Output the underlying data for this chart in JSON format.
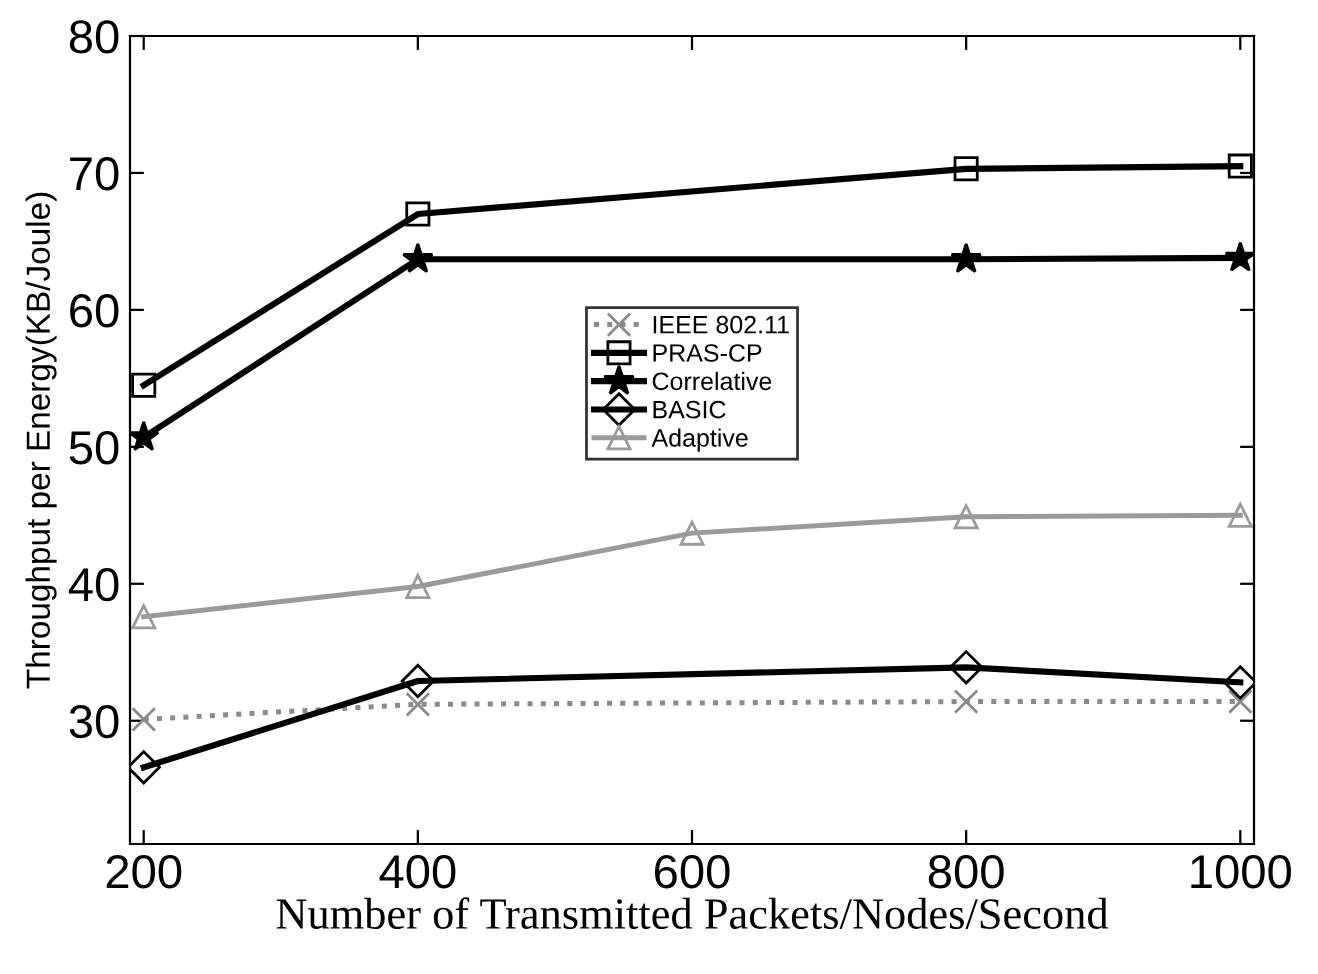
{
  "chart_data": {
    "type": "line",
    "xlabel": "Number of Transmitted Packets/Nodes/Second",
    "ylabel": "Throughput per Energy(KB/Joule)",
    "x": [
      200,
      400,
      800,
      1000
    ],
    "series": [
      {
        "name": "IEEE 802.11",
        "color": "#8a8a8a",
        "values": [
          30.1,
          31.2,
          31.4,
          31.4
        ],
        "marker": "cross",
        "line_style": "dotted"
      },
      {
        "name": "PRAS-CP",
        "color": "#000000",
        "values": [
          54.5,
          67.0,
          70.3,
          70.5
        ],
        "marker": "square",
        "line_style": "solid"
      },
      {
        "name": "Correlative",
        "color": "#000000",
        "values": [
          50.7,
          63.7,
          63.7,
          63.8
        ],
        "marker": "star",
        "line_style": "solid"
      },
      {
        "name": "BASIC",
        "color": "#000000",
        "values": [
          26.6,
          32.9,
          33.9,
          32.8
        ],
        "marker": "diamond",
        "line_style": "solid"
      },
      {
        "name": "Adaptive",
        "color": "#9a9a9a",
        "x": [
          200,
          400,
          600,
          800,
          1000
        ],
        "values": [
          37.6,
          39.8,
          43.7,
          44.9,
          45.0
        ],
        "marker": "triangle",
        "line_style": "solid"
      }
    ],
    "xlim": [
      190,
      1010
    ],
    "ylim": [
      21,
      80
    ],
    "xticks": [
      200,
      400,
      600,
      800,
      1000
    ],
    "yticks": [
      30,
      40,
      50,
      60,
      70,
      80
    ],
    "grid": false,
    "legend": "center"
  }
}
